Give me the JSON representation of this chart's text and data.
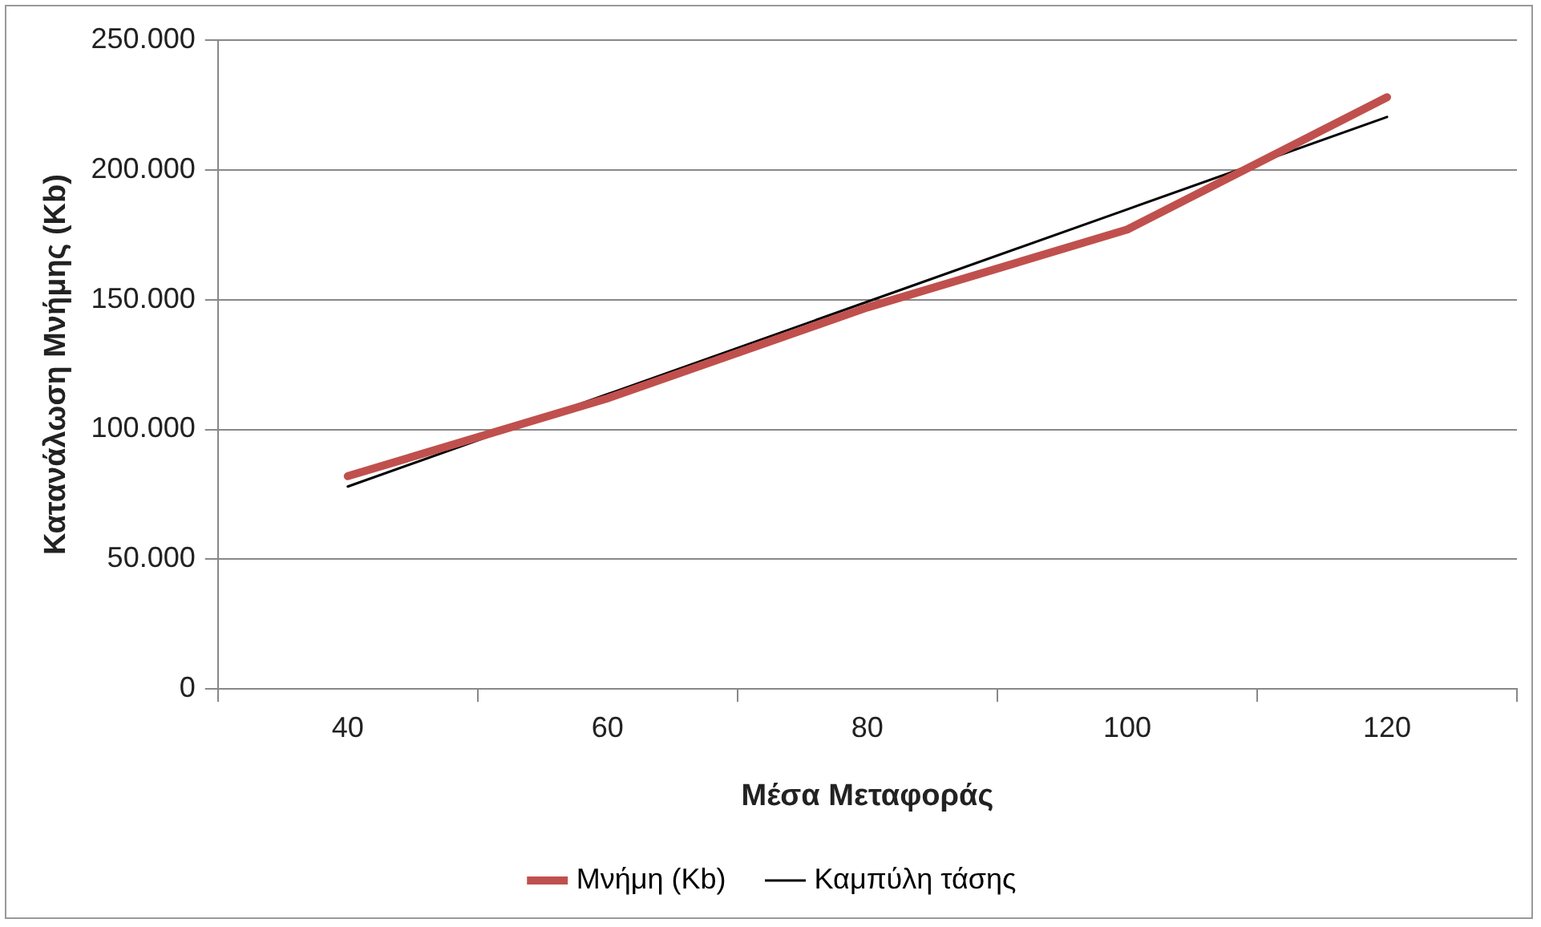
{
  "chart_data": {
    "type": "line",
    "xlabel": "Μέσα Μεταφοράς",
    "ylabel": "Κατανάλωση Μνήμης (Kb)",
    "categories": [
      "40",
      "60",
      "80",
      "100",
      "120"
    ],
    "series": [
      {
        "name": "Μνήμη (Kb)",
        "color": "#c0504d",
        "values": [
          82000,
          112000,
          147000,
          177000,
          228000
        ]
      },
      {
        "name": "Καμπύλη τάσης",
        "color": "#000000",
        "values": [
          78000,
          113600,
          149200,
          184800,
          220400
        ]
      }
    ],
    "ylim": [
      0,
      250000
    ],
    "yticks": [
      {
        "value": 0,
        "label": "0"
      },
      {
        "value": 50000,
        "label": "50.000"
      },
      {
        "value": 100000,
        "label": "100.000"
      },
      {
        "value": 150000,
        "label": "150.000"
      },
      {
        "value": 200000,
        "label": "200.000"
      },
      {
        "value": 250000,
        "label": "250.000"
      }
    ],
    "grid": "y",
    "legend": "bottom",
    "marker": "none",
    "line_style": "solid"
  }
}
